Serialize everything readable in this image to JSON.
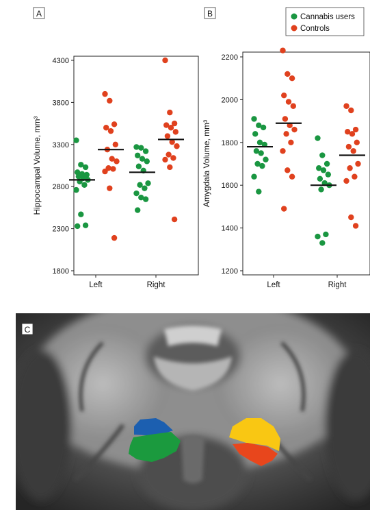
{
  "panel_labels": [
    "A",
    "B",
    "C"
  ],
  "legend": [
    {
      "label": "Cannabis users",
      "color": "#1a9641"
    },
    {
      "label": "Controls",
      "color": "#e0411e"
    }
  ],
  "colors": {
    "cannabis": "#1a9641",
    "controls": "#e0411e",
    "mean_line": "#111111",
    "brain_blue": "#1c5fb0",
    "brain_green": "#1b9a3e",
    "brain_yellow": "#f9c713",
    "brain_red": "#e8461c"
  },
  "chart_data": [
    {
      "type": "scatter",
      "panel": "A",
      "ylabel": "Hippocampal Volume, mm³",
      "ylim": [
        1800,
        4300
      ],
      "yticks": [
        1800,
        2300,
        2800,
        3300,
        3800,
        4300
      ],
      "categories": [
        "Left",
        "Right"
      ],
      "series": [
        {
          "name": "Cannabis users",
          "color": "#1a9641",
          "values": [
            [
              3350,
              3060,
              3030,
              2970,
              2950,
              2940,
              2920,
              2900,
              2880,
              2860,
              2820,
              2760,
              2470,
              2340,
              2330
            ],
            [
              3270,
              3260,
              3220,
              3170,
              3130,
              3100,
              3040,
              2990,
              2840,
              2820,
              2780,
              2720,
              2670,
              2650,
              2520
            ]
          ]
        },
        {
          "name": "Controls",
          "color": "#e0411e",
          "values": [
            [
              3900,
              3820,
              3540,
              3500,
              3460,
              3300,
              3240,
              3130,
              3100,
              3020,
              3010,
              2980,
              2780,
              2190
            ],
            [
              4300,
              3680,
              3550,
              3530,
              3500,
              3450,
              3400,
              3330,
              3280,
              3180,
              3140,
              3120,
              3030,
              2410
            ]
          ]
        }
      ],
      "means": {
        "Cannabis users": [
          2880,
          2970
        ],
        "Controls": [
          3240,
          3360
        ]
      }
    },
    {
      "type": "scatter",
      "panel": "B",
      "ylabel": "Amygdala Volume, mm³",
      "ylim": [
        1200,
        2200
      ],
      "yticks": [
        1200,
        1400,
        1600,
        1800,
        2000,
        2200
      ],
      "categories": [
        "Left",
        "Right"
      ],
      "series": [
        {
          "name": "Cannabis users",
          "color": "#1a9641",
          "values": [
            [
              1910,
              1880,
              1870,
              1840,
              1800,
              1790,
              1760,
              1750,
              1720,
              1700,
              1690,
              1640,
              1570
            ],
            [
              1820,
              1740,
              1700,
              1680,
              1670,
              1650,
              1630,
              1610,
              1600,
              1580,
              1370,
              1360,
              1330
            ]
          ]
        },
        {
          "name": "Controls",
          "color": "#e0411e",
          "values": [
            [
              2230,
              2120,
              2100,
              2020,
              1990,
              1970,
              1910,
              1880,
              1860,
              1840,
              1800,
              1760,
              1670,
              1640,
              1490
            ],
            [
              1970,
              1950,
              1860,
              1850,
              1840,
              1800,
              1780,
              1760,
              1700,
              1680,
              1640,
              1620,
              1450,
              1410
            ]
          ]
        }
      ],
      "means": {
        "Cannabis users": [
          1780,
          1600
        ],
        "Controls": [
          1890,
          1740
        ]
      }
    }
  ]
}
